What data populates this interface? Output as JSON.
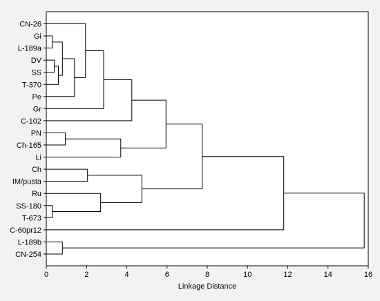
{
  "chart_data": {
    "type": "dendrogram",
    "title": "",
    "xlabel": "Linkage Distance",
    "ylabel": "",
    "xlim": [
      0,
      16
    ],
    "xticks": [
      0,
      2,
      4,
      6,
      8,
      10,
      12,
      14,
      16
    ],
    "grid": false,
    "leaves": [
      "CN-26",
      "Gi",
      "L-189a",
      "DV",
      "SS",
      "T-370",
      "Pe",
      "Gr",
      "C-102",
      "PN",
      "Ch-165",
      "Li",
      "Ch",
      "IM/pusta",
      "Ru",
      "SS-180",
      "T-673",
      "C-60pr12",
      "L-189b",
      "CN-254"
    ],
    "merges": [
      {
        "id": "m1",
        "a": "DV",
        "b": "SS",
        "distance": 0.4
      },
      {
        "id": "m2",
        "a": "m1",
        "b": "T-370",
        "distance": 0.6
      },
      {
        "id": "m3",
        "a": "Gi",
        "b": "L-189a",
        "distance": 0.3
      },
      {
        "id": "m4",
        "a": "m3",
        "b": "m2",
        "distance": 0.8
      },
      {
        "id": "m5",
        "a": "m4",
        "b": "Pe",
        "distance": 1.4
      },
      {
        "id": "m6",
        "a": "CN-26",
        "b": "m5",
        "distance": 1.95
      },
      {
        "id": "m7",
        "a": "m6",
        "b": "Gr",
        "distance": 2.85
      },
      {
        "id": "m8",
        "a": "m7",
        "b": "C-102",
        "distance": 4.25
      },
      {
        "id": "m9",
        "a": "PN",
        "b": "Ch-165",
        "distance": 0.95
      },
      {
        "id": "m10",
        "a": "m9",
        "b": "Li",
        "distance": 3.7
      },
      {
        "id": "m11",
        "a": "m8",
        "b": "m10",
        "distance": 5.95
      },
      {
        "id": "m12",
        "a": "Ch",
        "b": "IM/pusta",
        "distance": 2.05
      },
      {
        "id": "m13",
        "a": "SS-180",
        "b": "T-673",
        "distance": 0.3
      },
      {
        "id": "m14",
        "a": "Ru",
        "b": "m13",
        "distance": 2.7
      },
      {
        "id": "m15",
        "a": "m12",
        "b": "m14",
        "distance": 4.75
      },
      {
        "id": "m16",
        "a": "m11",
        "b": "m15",
        "distance": 7.75
      },
      {
        "id": "m17",
        "a": "m16",
        "b": "C-60pr12",
        "distance": 11.8
      },
      {
        "id": "m18",
        "a": "L-189b",
        "b": "CN-254",
        "distance": 0.8
      },
      {
        "id": "m19",
        "a": "m17",
        "b": "m18",
        "distance": 15.8
      }
    ]
  }
}
